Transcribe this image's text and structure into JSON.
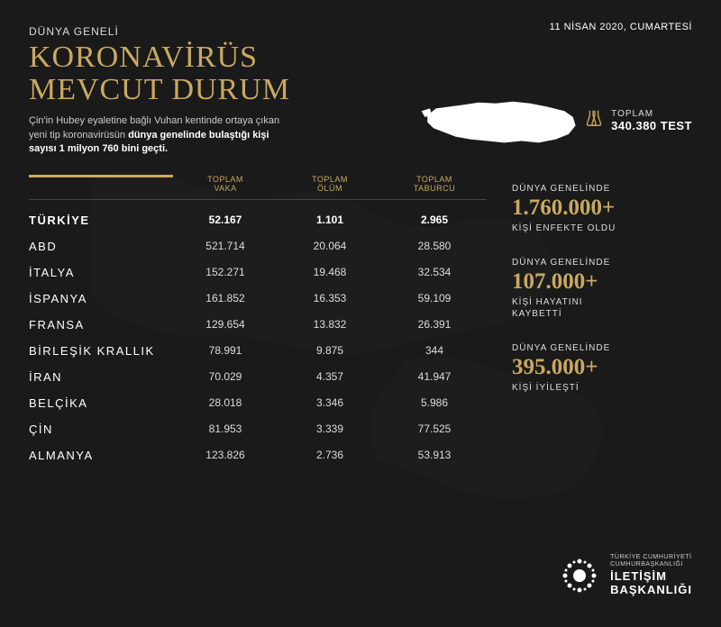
{
  "date": "11 NİSAN 2020, CUMARTESİ",
  "header": {
    "subtitle": "DÜNYA GENELİ",
    "title_line1": "KORONAVİRÜS",
    "title_line2": "MEVCUT DURUM",
    "desc_pre": "Çin'in Hubey eyaletine bağlı Vuhan kentinde ortaya çıkan yeni tip koronavirüsün ",
    "desc_bold": "dünya genelinde bulaştığı kişi sayısı 1 milyon 760 bini geçti."
  },
  "test": {
    "label": "TOPLAM",
    "value": "340.380 TEST"
  },
  "table": {
    "headers": {
      "country": "",
      "cases": "TOPLAM\nVAKA",
      "deaths": "TOPLAM\nÖLÜM",
      "recovered": "TOPLAM\nTABURCU"
    },
    "rows": [
      {
        "country": "TÜRKİYE",
        "cases": "52.167",
        "deaths": "1.101",
        "recovered": "2.965",
        "highlight": true
      },
      {
        "country": "ABD",
        "cases": "521.714",
        "deaths": "20.064",
        "recovered": "28.580"
      },
      {
        "country": "İTALYA",
        "cases": "152.271",
        "deaths": "19.468",
        "recovered": "32.534"
      },
      {
        "country": "İSPANYA",
        "cases": "161.852",
        "deaths": "16.353",
        "recovered": "59.109"
      },
      {
        "country": "FRANSA",
        "cases": "129.654",
        "deaths": "13.832",
        "recovered": "26.391"
      },
      {
        "country": "BİRLEŞİK KRALLIK",
        "cases": "78.991",
        "deaths": "9.875",
        "recovered": "344"
      },
      {
        "country": "İRAN",
        "cases": "70.029",
        "deaths": "4.357",
        "recovered": "41.947"
      },
      {
        "country": "BELÇİKA",
        "cases": "28.018",
        "deaths": "3.346",
        "recovered": "5.986"
      },
      {
        "country": "ÇİN",
        "cases": "81.953",
        "deaths": "3.339",
        "recovered": "77.525"
      },
      {
        "country": "ALMANYA",
        "cases": "123.826",
        "deaths": "2.736",
        "recovered": "53.913"
      }
    ]
  },
  "stats": [
    {
      "label": "DÜNYA GENELİNDE",
      "value": "1.760.000+",
      "sub": "KİŞİ ENFEKTE OLDU"
    },
    {
      "label": "DÜNYA GENELİNDE",
      "value": "107.000+",
      "sub": "KİŞİ HAYATINI\nKAYBETTİ"
    },
    {
      "label": "DÜNYA GENELİNDE",
      "value": "395.000+",
      "sub": "KİŞİ İYİLEŞTİ"
    }
  ],
  "logo": {
    "small": "TÜRKİYE CUMHURİYETİ\nCUMHURBAŞKANLIĞI",
    "big1": "İLETİŞİM",
    "big2": "BAŞKANLIĞI"
  },
  "colors": {
    "bg": "#1a1a1a",
    "gold": "#c9a961",
    "text": "#ffffff",
    "muted": "#cccccc"
  }
}
